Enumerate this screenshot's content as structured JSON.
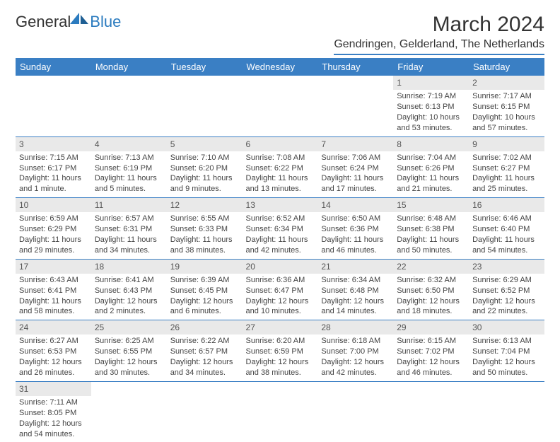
{
  "logo": {
    "textA": "General",
    "textB": "Blue",
    "colorA": "#333333",
    "colorB": "#2b7bbf"
  },
  "title": "March 2024",
  "location": "Gendringen, Gelderland, The Netherlands",
  "header_bg": "#3a7fc4",
  "daynum_bg": "#e9e9e9",
  "weekdays": [
    "Sunday",
    "Monday",
    "Tuesday",
    "Wednesday",
    "Thursday",
    "Friday",
    "Saturday"
  ],
  "weeks": [
    [
      null,
      null,
      null,
      null,
      null,
      {
        "n": "1",
        "sunrise": "Sunrise: 7:19 AM",
        "sunset": "Sunset: 6:13 PM",
        "day": "Daylight: 10 hours and 53 minutes."
      },
      {
        "n": "2",
        "sunrise": "Sunrise: 7:17 AM",
        "sunset": "Sunset: 6:15 PM",
        "day": "Daylight: 10 hours and 57 minutes."
      }
    ],
    [
      {
        "n": "3",
        "sunrise": "Sunrise: 7:15 AM",
        "sunset": "Sunset: 6:17 PM",
        "day": "Daylight: 11 hours and 1 minute."
      },
      {
        "n": "4",
        "sunrise": "Sunrise: 7:13 AM",
        "sunset": "Sunset: 6:19 PM",
        "day": "Daylight: 11 hours and 5 minutes."
      },
      {
        "n": "5",
        "sunrise": "Sunrise: 7:10 AM",
        "sunset": "Sunset: 6:20 PM",
        "day": "Daylight: 11 hours and 9 minutes."
      },
      {
        "n": "6",
        "sunrise": "Sunrise: 7:08 AM",
        "sunset": "Sunset: 6:22 PM",
        "day": "Daylight: 11 hours and 13 minutes."
      },
      {
        "n": "7",
        "sunrise": "Sunrise: 7:06 AM",
        "sunset": "Sunset: 6:24 PM",
        "day": "Daylight: 11 hours and 17 minutes."
      },
      {
        "n": "8",
        "sunrise": "Sunrise: 7:04 AM",
        "sunset": "Sunset: 6:26 PM",
        "day": "Daylight: 11 hours and 21 minutes."
      },
      {
        "n": "9",
        "sunrise": "Sunrise: 7:02 AM",
        "sunset": "Sunset: 6:27 PM",
        "day": "Daylight: 11 hours and 25 minutes."
      }
    ],
    [
      {
        "n": "10",
        "sunrise": "Sunrise: 6:59 AM",
        "sunset": "Sunset: 6:29 PM",
        "day": "Daylight: 11 hours and 29 minutes."
      },
      {
        "n": "11",
        "sunrise": "Sunrise: 6:57 AM",
        "sunset": "Sunset: 6:31 PM",
        "day": "Daylight: 11 hours and 34 minutes."
      },
      {
        "n": "12",
        "sunrise": "Sunrise: 6:55 AM",
        "sunset": "Sunset: 6:33 PM",
        "day": "Daylight: 11 hours and 38 minutes."
      },
      {
        "n": "13",
        "sunrise": "Sunrise: 6:52 AM",
        "sunset": "Sunset: 6:34 PM",
        "day": "Daylight: 11 hours and 42 minutes."
      },
      {
        "n": "14",
        "sunrise": "Sunrise: 6:50 AM",
        "sunset": "Sunset: 6:36 PM",
        "day": "Daylight: 11 hours and 46 minutes."
      },
      {
        "n": "15",
        "sunrise": "Sunrise: 6:48 AM",
        "sunset": "Sunset: 6:38 PM",
        "day": "Daylight: 11 hours and 50 minutes."
      },
      {
        "n": "16",
        "sunrise": "Sunrise: 6:46 AM",
        "sunset": "Sunset: 6:40 PM",
        "day": "Daylight: 11 hours and 54 minutes."
      }
    ],
    [
      {
        "n": "17",
        "sunrise": "Sunrise: 6:43 AM",
        "sunset": "Sunset: 6:41 PM",
        "day": "Daylight: 11 hours and 58 minutes."
      },
      {
        "n": "18",
        "sunrise": "Sunrise: 6:41 AM",
        "sunset": "Sunset: 6:43 PM",
        "day": "Daylight: 12 hours and 2 minutes."
      },
      {
        "n": "19",
        "sunrise": "Sunrise: 6:39 AM",
        "sunset": "Sunset: 6:45 PM",
        "day": "Daylight: 12 hours and 6 minutes."
      },
      {
        "n": "20",
        "sunrise": "Sunrise: 6:36 AM",
        "sunset": "Sunset: 6:47 PM",
        "day": "Daylight: 12 hours and 10 minutes."
      },
      {
        "n": "21",
        "sunrise": "Sunrise: 6:34 AM",
        "sunset": "Sunset: 6:48 PM",
        "day": "Daylight: 12 hours and 14 minutes."
      },
      {
        "n": "22",
        "sunrise": "Sunrise: 6:32 AM",
        "sunset": "Sunset: 6:50 PM",
        "day": "Daylight: 12 hours and 18 minutes."
      },
      {
        "n": "23",
        "sunrise": "Sunrise: 6:29 AM",
        "sunset": "Sunset: 6:52 PM",
        "day": "Daylight: 12 hours and 22 minutes."
      }
    ],
    [
      {
        "n": "24",
        "sunrise": "Sunrise: 6:27 AM",
        "sunset": "Sunset: 6:53 PM",
        "day": "Daylight: 12 hours and 26 minutes."
      },
      {
        "n": "25",
        "sunrise": "Sunrise: 6:25 AM",
        "sunset": "Sunset: 6:55 PM",
        "day": "Daylight: 12 hours and 30 minutes."
      },
      {
        "n": "26",
        "sunrise": "Sunrise: 6:22 AM",
        "sunset": "Sunset: 6:57 PM",
        "day": "Daylight: 12 hours and 34 minutes."
      },
      {
        "n": "27",
        "sunrise": "Sunrise: 6:20 AM",
        "sunset": "Sunset: 6:59 PM",
        "day": "Daylight: 12 hours and 38 minutes."
      },
      {
        "n": "28",
        "sunrise": "Sunrise: 6:18 AM",
        "sunset": "Sunset: 7:00 PM",
        "day": "Daylight: 12 hours and 42 minutes."
      },
      {
        "n": "29",
        "sunrise": "Sunrise: 6:15 AM",
        "sunset": "Sunset: 7:02 PM",
        "day": "Daylight: 12 hours and 46 minutes."
      },
      {
        "n": "30",
        "sunrise": "Sunrise: 6:13 AM",
        "sunset": "Sunset: 7:04 PM",
        "day": "Daylight: 12 hours and 50 minutes."
      }
    ],
    [
      {
        "n": "31",
        "sunrise": "Sunrise: 7:11 AM",
        "sunset": "Sunset: 8:05 PM",
        "day": "Daylight: 12 hours and 54 minutes."
      },
      null,
      null,
      null,
      null,
      null,
      null
    ]
  ]
}
